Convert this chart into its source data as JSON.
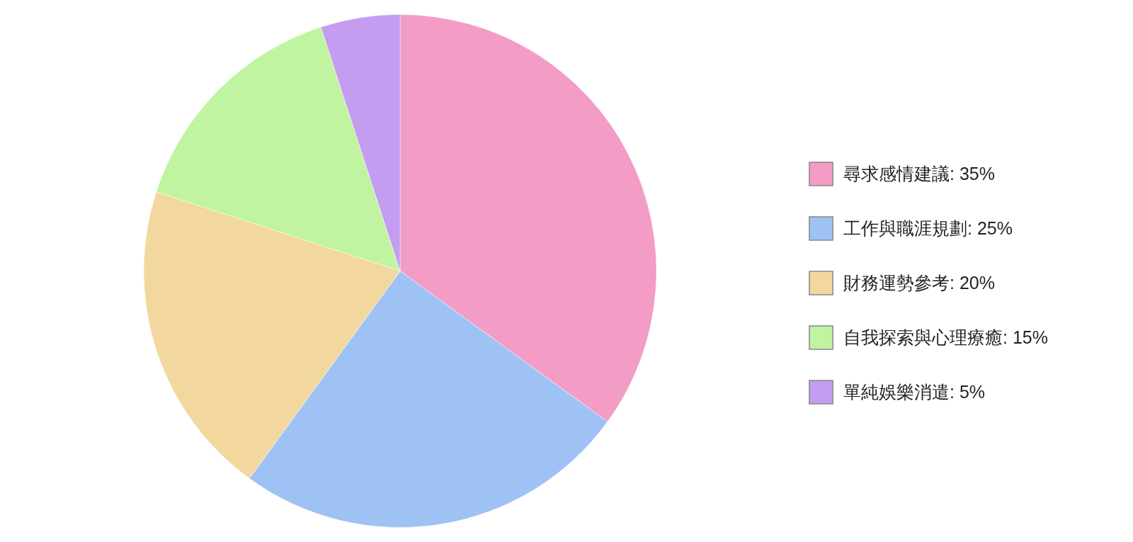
{
  "chart_data": {
    "type": "pie",
    "categories": [
      "尋求感情建議: 35%",
      "工作與職涯規劃: 25%",
      "財務運勢參考: 20%",
      "自我探索與心理療癒: 15%",
      "單純娛樂消遣: 5%"
    ],
    "values": [
      35,
      25,
      20,
      15,
      5
    ],
    "colors": [
      "#f29cc6",
      "#9fc2f4",
      "#f2d89e",
      "#c0f4a0",
      "#c49cf0"
    ],
    "legend": "right"
  }
}
